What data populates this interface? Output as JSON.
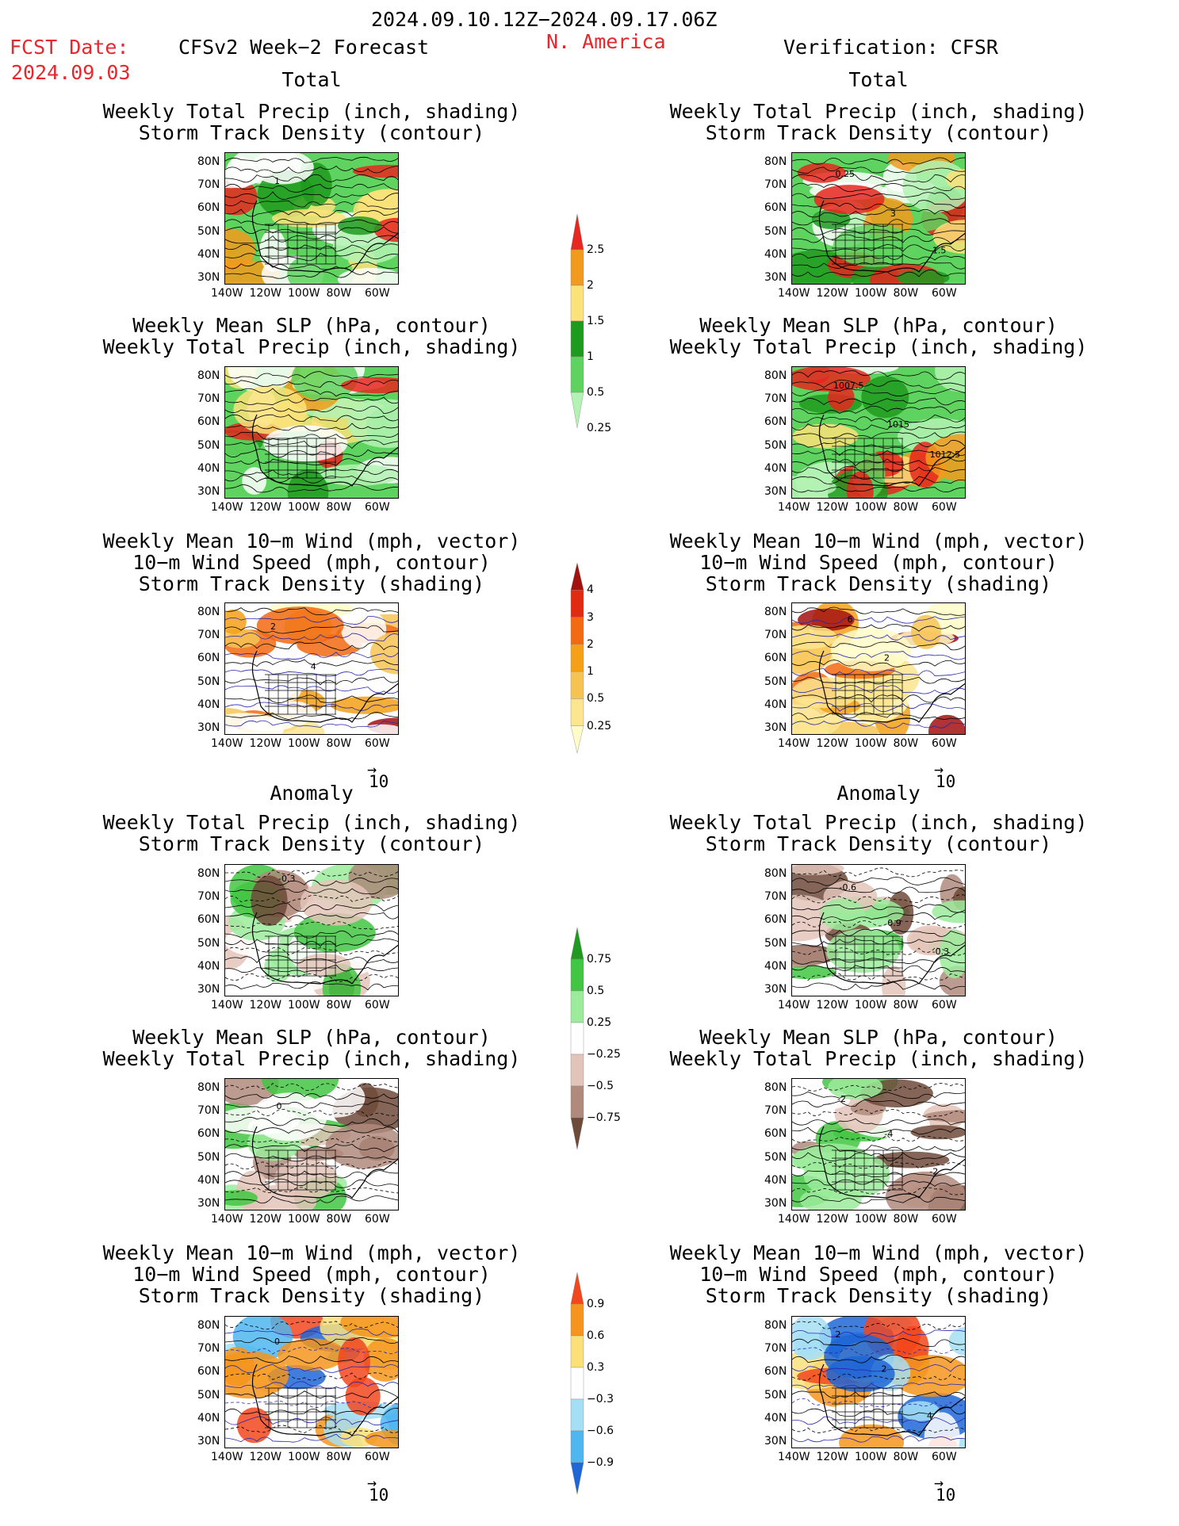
{
  "header": {
    "date_range": "2024.09.10.12Z−2024.09.17.06Z",
    "fcst_label": "FCST Date:",
    "fcst_date": "2024.09.03",
    "left_title": "CFSv2 Week−2 Forecast",
    "region": "N. America",
    "right_title": "Verification: CFSR"
  },
  "sections": {
    "total": "Total",
    "anomaly": "Anomaly"
  },
  "panel_titles": {
    "precip_storm": [
      "Weekly Total Precip (inch, shading)",
      "Storm Track Density (contour)"
    ],
    "slp_precip": [
      "Weekly Mean SLP (hPa, contour)",
      "Weekly Total Precip (inch, shading)"
    ],
    "wind_storm": [
      "Weekly Mean 10−m Wind (mph, vector)",
      "10−m Wind Speed (mph, contour)",
      "Storm Track Density (shading)"
    ]
  },
  "axes": {
    "lat_labels": [
      "80N",
      "70N",
      "60N",
      "50N",
      "40N",
      "30N"
    ],
    "lon_labels": [
      "140W",
      "120W",
      "100W",
      "80W",
      "60W"
    ]
  },
  "vector_ref": "10",
  "chart_data": [
    {
      "type": "heatmap",
      "panel": "forecast-total-precip",
      "title": "Weekly Total Precip (inch, shading)",
      "contour_labels": [
        "1"
      ]
    },
    {
      "type": "heatmap",
      "panel": "forecast-total-slp",
      "title": "Weekly Mean SLP (hPa, contour)"
    },
    {
      "type": "heatmap",
      "panel": "forecast-total-wind",
      "title": "Weekly Mean 10-m Wind (mph, vector)",
      "contour_labels": [
        "2",
        "4"
      ]
    },
    {
      "type": "heatmap",
      "panel": "verif-total-precip",
      "title": "Weekly Total Precip (inch, shading)",
      "contour_labels": [
        "0.25",
        "3",
        "1.5"
      ]
    },
    {
      "type": "heatmap",
      "panel": "verif-total-slp",
      "title": "Weekly Mean SLP (hPa, contour)",
      "contour_labels": [
        "1007.5",
        "1015",
        "1012.5"
      ]
    },
    {
      "type": "heatmap",
      "panel": "verif-total-wind",
      "title": "Weekly Mean 10-m Wind (mph, vector)",
      "contour_labels": [
        "6",
        "2"
      ]
    },
    {
      "type": "heatmap",
      "panel": "forecast-anom-precip",
      "title": "Weekly Total Precip (inch, shading)",
      "contour_labels": [
        "-0.3"
      ]
    },
    {
      "type": "heatmap",
      "panel": "forecast-anom-slp",
      "title": "Weekly Mean SLP (hPa, contour)",
      "contour_labels": [
        "0"
      ]
    },
    {
      "type": "heatmap",
      "panel": "forecast-anom-wind",
      "title": "Weekly Mean 10-m Wind (mph, vector)",
      "contour_labels": [
        "0"
      ]
    },
    {
      "type": "heatmap",
      "panel": "verif-anom-precip",
      "title": "Weekly Total Precip (inch, shading)",
      "contour_labels": [
        "-0.6",
        "0.9",
        "-0.3"
      ]
    },
    {
      "type": "heatmap",
      "panel": "verif-anom-slp",
      "title": "Weekly Mean SLP (hPa, contour)",
      "contour_labels": [
        "-2",
        "-4",
        "-2"
      ]
    },
    {
      "type": "heatmap",
      "panel": "verif-anom-wind",
      "title": "Weekly Mean 10-m Wind (mph, vector)",
      "contour_labels": [
        "2",
        "2",
        "4"
      ]
    }
  ],
  "colorbars": {
    "total_precip": {
      "labels": [
        "2.5",
        "2",
        "1.5",
        "1",
        "0.5",
        "0.25"
      ],
      "colors": [
        "#e6261f",
        "#f29a1d",
        "#fbe27a",
        "#1e9a1e",
        "#5fd35f",
        "#b4f2b4"
      ]
    },
    "total_storm": {
      "labels": [
        "4",
        "3",
        "2",
        "1",
        "0.5",
        "0.25"
      ],
      "colors": [
        "#a31010",
        "#e02a12",
        "#f26a12",
        "#f5a017",
        "#f7c453",
        "#fbe58e",
        "#fffcc8"
      ]
    },
    "anom_precip": {
      "labels": [
        "0.75",
        "0.5",
        "0.25",
        "−0.25",
        "−0.5",
        "−0.75"
      ],
      "colors": [
        "#1e9a1e",
        "#42c542",
        "#9ceb9c",
        "#ffffff",
        "#e3c4b8",
        "#b08a7c",
        "#6e4a3a"
      ]
    },
    "anom_storm": {
      "labels": [
        "0.9",
        "0.6",
        "0.3",
        "−0.3",
        "−0.6",
        "−0.9"
      ],
      "colors": [
        "#f2471d",
        "#f5951d",
        "#fbe07a",
        "#ffffff",
        "#a4dff5",
        "#4fb6ef",
        "#1f66d6"
      ]
    }
  }
}
